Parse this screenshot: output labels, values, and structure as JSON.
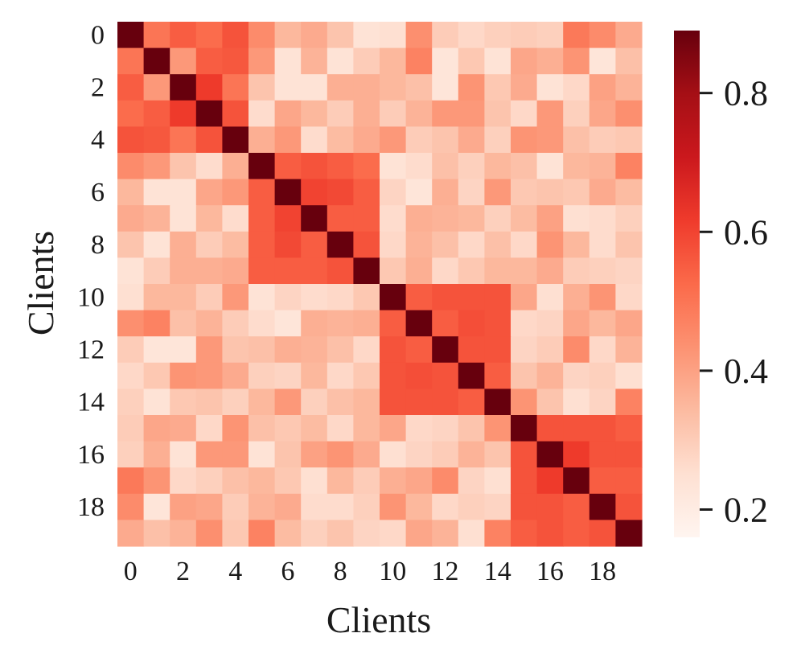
{
  "chart_data": {
    "type": "heatmap",
    "title": "",
    "xlabel": "Clients",
    "ylabel": "Clients",
    "x_tick_labels": [
      "0",
      "2",
      "4",
      "6",
      "8",
      "10",
      "12",
      "14",
      "16",
      "18"
    ],
    "y_tick_labels": [
      "0",
      "2",
      "4",
      "6",
      "8",
      "10",
      "12",
      "14",
      "16",
      "18"
    ],
    "rows": 20,
    "cols": 20,
    "colormap": "Reds",
    "value_range": [
      0.16,
      0.89
    ],
    "colorbar": {
      "ticks": [
        0.2,
        0.4,
        0.6,
        0.8
      ],
      "tick_labels": [
        "0.2",
        "0.4",
        "0.6",
        "0.8"
      ],
      "position": "right"
    },
    "values": [
      [
        0.89,
        0.5,
        0.55,
        0.52,
        0.57,
        0.45,
        0.35,
        0.38,
        0.32,
        0.24,
        0.25,
        0.44,
        0.3,
        0.27,
        0.29,
        0.3,
        0.29,
        0.49,
        0.45,
        0.38
      ],
      [
        0.5,
        0.89,
        0.42,
        0.55,
        0.56,
        0.42,
        0.24,
        0.36,
        0.24,
        0.3,
        0.35,
        0.47,
        0.23,
        0.31,
        0.24,
        0.39,
        0.37,
        0.43,
        0.23,
        0.33
      ],
      [
        0.55,
        0.42,
        0.89,
        0.62,
        0.5,
        0.32,
        0.24,
        0.24,
        0.37,
        0.37,
        0.35,
        0.33,
        0.23,
        0.43,
        0.31,
        0.38,
        0.24,
        0.27,
        0.4,
        0.36
      ],
      [
        0.52,
        0.55,
        0.62,
        0.89,
        0.57,
        0.26,
        0.39,
        0.35,
        0.3,
        0.37,
        0.3,
        0.36,
        0.42,
        0.42,
        0.32,
        0.27,
        0.42,
        0.29,
        0.39,
        0.44
      ],
      [
        0.57,
        0.56,
        0.5,
        0.57,
        0.89,
        0.37,
        0.42,
        0.26,
        0.34,
        0.38,
        0.42,
        0.3,
        0.32,
        0.38,
        0.29,
        0.43,
        0.42,
        0.33,
        0.3,
        0.31
      ],
      [
        0.45,
        0.42,
        0.32,
        0.26,
        0.37,
        0.89,
        0.55,
        0.57,
        0.55,
        0.52,
        0.24,
        0.26,
        0.33,
        0.29,
        0.35,
        0.33,
        0.24,
        0.35,
        0.36,
        0.47
      ],
      [
        0.35,
        0.24,
        0.24,
        0.39,
        0.42,
        0.55,
        0.89,
        0.6,
        0.59,
        0.55,
        0.28,
        0.23,
        0.37,
        0.28,
        0.42,
        0.31,
        0.32,
        0.31,
        0.38,
        0.34
      ],
      [
        0.38,
        0.36,
        0.24,
        0.35,
        0.26,
        0.55,
        0.6,
        0.89,
        0.55,
        0.55,
        0.26,
        0.37,
        0.36,
        0.35,
        0.29,
        0.34,
        0.4,
        0.25,
        0.26,
        0.29
      ],
      [
        0.32,
        0.24,
        0.37,
        0.3,
        0.34,
        0.55,
        0.59,
        0.55,
        0.89,
        0.57,
        0.27,
        0.36,
        0.33,
        0.27,
        0.33,
        0.27,
        0.43,
        0.35,
        0.26,
        0.32
      ],
      [
        0.24,
        0.3,
        0.37,
        0.37,
        0.38,
        0.55,
        0.55,
        0.55,
        0.57,
        0.89,
        0.31,
        0.37,
        0.27,
        0.31,
        0.35,
        0.35,
        0.38,
        0.3,
        0.29,
        0.28
      ],
      [
        0.25,
        0.35,
        0.35,
        0.3,
        0.42,
        0.24,
        0.28,
        0.26,
        0.27,
        0.31,
        0.89,
        0.55,
        0.57,
        0.57,
        0.57,
        0.39,
        0.25,
        0.37,
        0.43,
        0.27
      ],
      [
        0.44,
        0.47,
        0.33,
        0.36,
        0.3,
        0.26,
        0.23,
        0.37,
        0.36,
        0.37,
        0.55,
        0.89,
        0.55,
        0.58,
        0.57,
        0.27,
        0.28,
        0.39,
        0.35,
        0.39
      ],
      [
        0.3,
        0.23,
        0.23,
        0.42,
        0.32,
        0.33,
        0.37,
        0.36,
        0.33,
        0.27,
        0.57,
        0.55,
        0.89,
        0.57,
        0.57,
        0.28,
        0.3,
        0.45,
        0.27,
        0.36
      ],
      [
        0.27,
        0.31,
        0.43,
        0.42,
        0.38,
        0.29,
        0.28,
        0.35,
        0.27,
        0.31,
        0.57,
        0.58,
        0.57,
        0.89,
        0.55,
        0.32,
        0.36,
        0.28,
        0.29,
        0.25
      ],
      [
        0.29,
        0.24,
        0.31,
        0.32,
        0.29,
        0.35,
        0.42,
        0.29,
        0.33,
        0.35,
        0.57,
        0.57,
        0.57,
        0.55,
        0.89,
        0.43,
        0.32,
        0.25,
        0.28,
        0.47
      ],
      [
        0.3,
        0.39,
        0.38,
        0.27,
        0.43,
        0.33,
        0.31,
        0.34,
        0.27,
        0.35,
        0.39,
        0.27,
        0.28,
        0.32,
        0.43,
        0.89,
        0.57,
        0.57,
        0.57,
        0.55
      ],
      [
        0.29,
        0.37,
        0.24,
        0.42,
        0.42,
        0.24,
        0.32,
        0.4,
        0.43,
        0.38,
        0.25,
        0.28,
        0.3,
        0.36,
        0.32,
        0.57,
        0.89,
        0.62,
        0.57,
        0.57
      ],
      [
        0.49,
        0.43,
        0.27,
        0.29,
        0.33,
        0.35,
        0.31,
        0.25,
        0.35,
        0.3,
        0.37,
        0.39,
        0.45,
        0.28,
        0.25,
        0.57,
        0.62,
        0.89,
        0.55,
        0.55
      ],
      [
        0.45,
        0.23,
        0.4,
        0.39,
        0.3,
        0.36,
        0.38,
        0.26,
        0.26,
        0.29,
        0.43,
        0.35,
        0.27,
        0.29,
        0.28,
        0.57,
        0.57,
        0.55,
        0.89,
        0.57
      ],
      [
        0.38,
        0.33,
        0.36,
        0.44,
        0.31,
        0.47,
        0.34,
        0.29,
        0.32,
        0.28,
        0.27,
        0.39,
        0.36,
        0.25,
        0.47,
        0.55,
        0.57,
        0.55,
        0.57,
        0.89
      ]
    ]
  }
}
